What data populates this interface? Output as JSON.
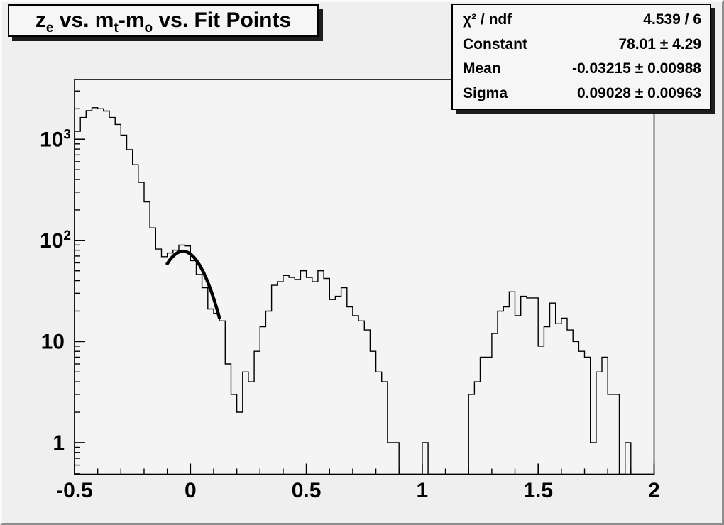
{
  "canvas": {
    "background": "#efefef",
    "plot_background": "#f4f4f4",
    "frame_color": "#000000",
    "bevel_light": "#fbfbfb",
    "bevel_dark": "#8e8e8e",
    "box_fill": "#f6f6f6",
    "box_shadow": "#1c1c1c"
  },
  "title": {
    "plain_text": "z_e vs. m_t-m_o vs. Fit Points",
    "segments": [
      {
        "text": "z"
      },
      {
        "sub": "e"
      },
      {
        "text": " vs. m"
      },
      {
        "sub": "t"
      },
      {
        "text": "-m"
      },
      {
        "sub": "o"
      },
      {
        "text": " vs. Fit Points"
      }
    ]
  },
  "stats": {
    "rows": [
      {
        "label": "χ² / ndf",
        "value": "4.539 / 6"
      },
      {
        "label": "Constant",
        "value": "78.01 ± 4.29"
      },
      {
        "label": "Mean",
        "value": "-0.03215 ± 0.00988"
      },
      {
        "label": "Sigma",
        "value": "0.09028 ± 0.00963"
      }
    ]
  },
  "chart_data": {
    "type": "bar",
    "subtype": "step-histogram-log-y",
    "title": "z_e vs. m_t-m_o vs. Fit Points",
    "xlabel": "",
    "ylabel": "",
    "x_min": -0.5,
    "x_max": 2.0,
    "n_bins": 100,
    "bin_width": 0.025,
    "y_scale": "log",
    "y_min": 0.487,
    "y_max": 3900,
    "grid": false,
    "x_major_ticks": [
      -0.5,
      0,
      0.5,
      1,
      1.5,
      2
    ],
    "x_tick_labels": [
      "-0.5",
      "0",
      "0.5",
      "1",
      "1.5",
      "2"
    ],
    "x_minor_step": 0.1,
    "y_major_ticks": [
      1,
      10,
      100,
      1000
    ],
    "y_tick_labels": [
      {
        "base": "1",
        "exp": ""
      },
      {
        "base": "10",
        "exp": ""
      },
      {
        "base": "10",
        "exp": "2"
      },
      {
        "base": "10",
        "exp": "3"
      }
    ],
    "values": [
      1200,
      1640,
      1920,
      2050,
      2000,
      1900,
      1640,
      1400,
      1100,
      790,
      560,
      375,
      240,
      133,
      82,
      69,
      75,
      80,
      90,
      88,
      63,
      46,
      34,
      21,
      19,
      16,
      6,
      3,
      2,
      5,
      4,
      8,
      14,
      20,
      36,
      39,
      45,
      43,
      41,
      50,
      43,
      39,
      50,
      42,
      26,
      28,
      34,
      22,
      18,
      16,
      13,
      8,
      5,
      4,
      1,
      1,
      0,
      0,
      0,
      0,
      1,
      0,
      0,
      0,
      0,
      0,
      0,
      0,
      3,
      4,
      7,
      7,
      12,
      20,
      22,
      31,
      18,
      28,
      27,
      27,
      9,
      14,
      24,
      15,
      17,
      13,
      10,
      8,
      7,
      1,
      5,
      7,
      3,
      3,
      0,
      1,
      0,
      0,
      0,
      0
    ],
    "fit": {
      "type": "gaussian",
      "constant": 78.01,
      "mean": -0.03215,
      "sigma": 0.09028,
      "chi2": 4.539,
      "ndf": 6,
      "draw_range": [
        -0.1,
        0.125
      ],
      "line_color": "#000000",
      "line_width": 4.5
    }
  }
}
